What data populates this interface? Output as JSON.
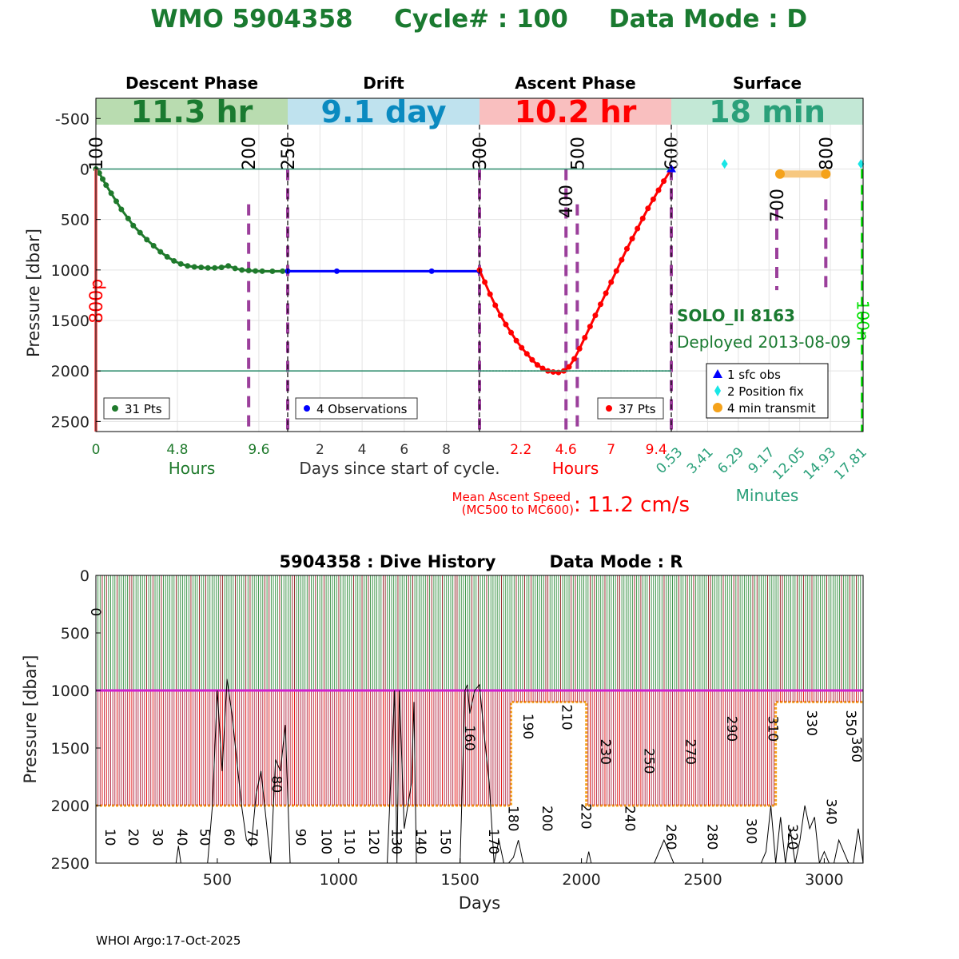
{
  "title": {
    "wmo": "WMO 5904358",
    "cycle": "Cycle# : 100",
    "mode": "Data Mode : D",
    "color": "#1a7a30"
  },
  "colors": {
    "descent": "#1f7a2c",
    "drift": "#0000ff",
    "ascent": "#ff0000",
    "surface": "#2aa07a",
    "descent_bg": "#b9dcb0",
    "drift_bg": "#bfe2ee",
    "ascent_bg": "#f9bfbf",
    "surface_bg": "#c3e8d6",
    "marker_line": "#9b3f9b",
    "hline": "#2a8a6a",
    "transmit": "#f5a21a",
    "position_fix": "#18e6e6",
    "sfc_obs": "#0000ff",
    "green_dash": "#00e000"
  },
  "chart_data": [
    {
      "type": "line",
      "panels": [
        {
          "name": "Descent Phase",
          "header_value": "11.3 hr",
          "xlabel": "Hours",
          "x_range": [
            0,
            11.3
          ],
          "x_ticks": [
            0,
            4.8,
            9.6
          ],
          "legend": "31 Pts",
          "x": [
            0,
            0.2,
            0.4,
            0.6,
            0.9,
            1.2,
            1.5,
            1.9,
            2.2,
            2.6,
            3.0,
            3.4,
            3.8,
            4.2,
            4.6,
            5.0,
            5.4,
            5.8,
            6.2,
            6.6,
            7.0,
            7.4,
            7.8,
            8.2,
            8.6,
            9.0,
            9.4,
            9.8,
            10.4,
            11.0,
            11.3
          ],
          "y": [
            0,
            40,
            100,
            160,
            240,
            320,
            400,
            490,
            560,
            630,
            700,
            760,
            820,
            870,
            910,
            940,
            960,
            970,
            975,
            980,
            980,
            975,
            960,
            985,
            1000,
            1005,
            1010,
            1012,
            1013,
            1012,
            1012
          ],
          "markers": [
            {
              "label": "100",
              "x": 0
            },
            {
              "label": "200",
              "x": 9.0
            }
          ]
        },
        {
          "name": "Drift",
          "header_value": "9.1 day",
          "xlabel": "Days since start of cycle.",
          "x_range": [
            0.47,
            9.57
          ],
          "x_ticks": [
            2,
            4,
            6,
            8
          ],
          "legend": "4 Observations",
          "x": [
            0.47,
            2.8,
            7.3,
            9.57
          ],
          "y": [
            1012,
            1012,
            1012,
            1012
          ],
          "markers": [
            {
              "label": "250",
              "x": 0.47
            },
            {
              "label": "300",
              "x": 9.57
            }
          ]
        },
        {
          "name": "Ascent Phase",
          "header_value": "10.2 hr",
          "xlabel": "Hours",
          "x_range": [
            0,
            10.2
          ],
          "x_ticks": [
            2.2,
            4.6,
            7,
            9.4
          ],
          "legend": "37 Pts",
          "x": [
            0,
            0.28,
            0.56,
            0.84,
            1.12,
            1.4,
            1.68,
            1.96,
            2.24,
            2.52,
            2.8,
            3.08,
            3.36,
            3.64,
            3.92,
            4.2,
            4.48,
            4.76,
            5.04,
            5.32,
            5.6,
            5.88,
            6.16,
            6.44,
            6.72,
            7.0,
            7.28,
            7.56,
            7.84,
            8.12,
            8.4,
            8.68,
            8.96,
            9.24,
            9.52,
            9.8,
            10.2
          ],
          "y": [
            1000,
            1120,
            1240,
            1350,
            1450,
            1540,
            1620,
            1700,
            1770,
            1830,
            1890,
            1940,
            1975,
            2000,
            2010,
            2015,
            2000,
            1960,
            1880,
            1780,
            1670,
            1560,
            1450,
            1340,
            1230,
            1120,
            1010,
            900,
            790,
            690,
            590,
            490,
            390,
            300,
            210,
            120,
            0
          ],
          "markers": [
            {
              "label": "400",
              "x": 4.6
            },
            {
              "label": "500",
              "x": 5.2
            },
            {
              "label": "600",
              "x": 10.2
            }
          ]
        },
        {
          "name": "Surface",
          "header_value": "18 min",
          "xlabel": "Minutes",
          "x_range": [
            0,
            18
          ],
          "x_ticks": [
            0.53,
            3.41,
            6.29,
            9.17,
            12.05,
            14.93,
            17.81
          ],
          "position_fix_x": [
            5.0,
            17.8
          ],
          "position_fix_y": [
            -50,
            -50
          ],
          "transmit_x": [
            10.2,
            14.5
          ],
          "transmit_y": [
            50,
            50
          ],
          "sfc_obs_x": [
            0
          ],
          "sfc_obs_y": [
            0
          ],
          "markers": [
            {
              "label": "700",
              "x": 9.9
            },
            {
              "label": "800",
              "x": 14.5
            }
          ],
          "green_label": "100n",
          "green_x": 17.9
        }
      ],
      "ylabel": "Pressure [dbar]",
      "y_range": [
        -700,
        2600
      ],
      "y_ticks": [
        -500,
        0,
        500,
        1000,
        1500,
        2000,
        2500
      ],
      "hlines": [
        0,
        2000
      ],
      "red_label": "800p",
      "float_model": "SOLO_II 8163",
      "deployed": "Deployed 2013-08-09",
      "surface_legend": [
        "1 sfc obs",
        "2 Position fix",
        "4 min transmit"
      ],
      "ascent_speed_label_line1": "Mean Ascent Speed",
      "ascent_speed_label_line2": "(MC500 to MC600)",
      "ascent_speed_value": ":  11.2 cm/s"
    },
    {
      "type": "bar",
      "title_left": "5904358 : Dive History",
      "title_right": "Data Mode : R",
      "xlabel": "Days",
      "ylabel": "Pressure [dbar]",
      "x_range": [
        0,
        3160
      ],
      "y_range": [
        0,
        2500
      ],
      "x_ticks": [
        500,
        1000,
        1500,
        2000,
        2500,
        3000
      ],
      "y_ticks": [
        0,
        500,
        1000,
        1500,
        2000,
        2500
      ],
      "park_pressure": 1000,
      "cycle_interval_days": 8.7,
      "num_cycles": 363,
      "profile_depth_segments": [
        {
          "from_day": 0,
          "to_day": 1710,
          "depth": 2000
        },
        {
          "from_day": 1710,
          "to_day": 2020,
          "depth": 1100
        },
        {
          "from_day": 2020,
          "to_day": 2800,
          "depth": 2000
        },
        {
          "from_day": 2800,
          "to_day": 2880,
          "depth": 1100
        },
        {
          "from_day": 2880,
          "to_day": 3160,
          "depth": 1100
        }
      ],
      "cycle_labels_bottom": [
        {
          "label": "0",
          "day": 0,
          "y": 280
        },
        {
          "label": "10",
          "day": 60,
          "y": 2200
        },
        {
          "label": "20",
          "day": 155,
          "y": 2200
        },
        {
          "label": "30",
          "day": 255,
          "y": 2200
        },
        {
          "label": "40",
          "day": 355,
          "y": 2200
        },
        {
          "label": "50",
          "day": 450,
          "y": 2200
        },
        {
          "label": "60",
          "day": 550,
          "y": 2200
        },
        {
          "label": "70",
          "day": 645,
          "y": 2200
        },
        {
          "label": "80",
          "day": 745,
          "y": 1740
        },
        {
          "label": "90",
          "day": 845,
          "y": 2200
        },
        {
          "label": "100",
          "day": 950,
          "y": 2200
        },
        {
          "label": "110",
          "day": 1045,
          "y": 2200
        },
        {
          "label": "120",
          "day": 1145,
          "y": 2200
        },
        {
          "label": "130",
          "day": 1240,
          "y": 2200
        },
        {
          "label": "140",
          "day": 1340,
          "y": 2200
        },
        {
          "label": "150",
          "day": 1440,
          "y": 2200
        },
        {
          "label": "160",
          "day": 1540,
          "y": 1300
        },
        {
          "label": "170",
          "day": 1640,
          "y": 2200
        },
        {
          "label": "180",
          "day": 1720,
          "y": 2000
        },
        {
          "label": "190",
          "day": 1780,
          "y": 1200
        },
        {
          "label": "200",
          "day": 1860,
          "y": 2000
        },
        {
          "label": "210",
          "day": 1940,
          "y": 1120
        },
        {
          "label": "220",
          "day": 2020,
          "y": 1980
        },
        {
          "label": "230",
          "day": 2100,
          "y": 1420
        },
        {
          "label": "240",
          "day": 2200,
          "y": 2000
        },
        {
          "label": "250",
          "day": 2280,
          "y": 1500
        },
        {
          "label": "260",
          "day": 2370,
          "y": 2160
        },
        {
          "label": "270",
          "day": 2450,
          "y": 1420
        },
        {
          "label": "280",
          "day": 2540,
          "y": 2160
        },
        {
          "label": "290",
          "day": 2620,
          "y": 1220
        },
        {
          "label": "300",
          "day": 2700,
          "y": 2110
        },
        {
          "label": "310",
          "day": 2790,
          "y": 1220
        },
        {
          "label": "320",
          "day": 2870,
          "y": 2160
        },
        {
          "label": "330",
          "day": 2950,
          "y": 1170
        },
        {
          "label": "340",
          "day": 3030,
          "y": 1940
        },
        {
          "label": "350",
          "day": 3110,
          "y": 1170
        },
        {
          "label": "360",
          "day": 3190,
          "y": 1400
        }
      ],
      "bottom_depth_curve_x": [
        0,
        30,
        70,
        110,
        150,
        190,
        230,
        270,
        310,
        330,
        340,
        350,
        380,
        420,
        460,
        480,
        500,
        520,
        540,
        560,
        580,
        600,
        620,
        640,
        660,
        680,
        700,
        720,
        740,
        760,
        780,
        800,
        840,
        880,
        920,
        960,
        1000,
        1040,
        1080,
        1120,
        1160,
        1200,
        1230,
        1240,
        1250,
        1270,
        1300,
        1310,
        1320,
        1350,
        1400,
        1450,
        1500,
        1520,
        1530,
        1540,
        1560,
        1580,
        1600,
        1620,
        1640,
        1660,
        1680,
        1700,
        1720,
        1740,
        1760,
        1780,
        1800,
        1840,
        1880,
        1920,
        1960,
        2000,
        2020,
        2030,
        2040,
        2060,
        2100,
        2140,
        2180,
        2220,
        2260,
        2300,
        2340,
        2380,
        2420,
        2460,
        2500,
        2540,
        2580,
        2620,
        2660,
        2700,
        2740,
        2760,
        2780,
        2800,
        2820,
        2840,
        2860,
        2880,
        2900,
        2920,
        2940,
        2960,
        2980,
        3000,
        3020,
        3040,
        3060,
        3080,
        3100,
        3120,
        3140,
        3160
      ],
      "bottom_depth_curve_y": [
        2500,
        2500,
        2500,
        2500,
        2500,
        2500,
        2500,
        2500,
        2500,
        2500,
        2350,
        2500,
        2500,
        2500,
        2500,
        2000,
        1000,
        1700,
        900,
        1200,
        1600,
        2000,
        2300,
        2350,
        1900,
        1700,
        2100,
        2500,
        1600,
        1700,
        1300,
        2500,
        2500,
        2500,
        2500,
        2500,
        2500,
        2500,
        2500,
        2500,
        2500,
        2500,
        1000,
        2500,
        1000,
        2200,
        1800,
        1100,
        2500,
        2500,
        2500,
        2500,
        2500,
        1000,
        950,
        1200,
        1000,
        950,
        1400,
        1800,
        2500,
        2300,
        2500,
        2500,
        2450,
        2300,
        2500,
        2500,
        2500,
        2500,
        2500,
        2500,
        2500,
        2500,
        2500,
        2400,
        2500,
        2500,
        2500,
        2500,
        2500,
        2500,
        2500,
        2500,
        2300,
        2500,
        2500,
        2500,
        2500,
        2500,
        2500,
        2500,
        2500,
        2500,
        2500,
        2400,
        2000,
        2500,
        2100,
        2500,
        2200,
        2500,
        2300,
        2000,
        2200,
        2100,
        2500,
        2400,
        2500,
        2500,
        2300,
        2400,
        2500,
        2500,
        2200,
        2500
      ]
    }
  ],
  "footer": "WHOI Argo:17-Oct-2025"
}
